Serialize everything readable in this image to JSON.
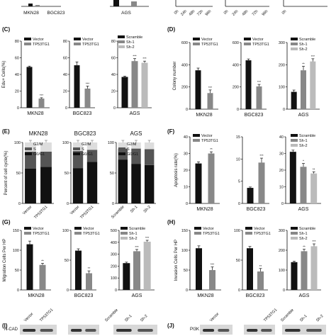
{
  "figure": {
    "top_strip": {
      "labels": [
        "MKN28",
        "BGC823",
        "AGS"
      ],
      "ticks": [
        "0h",
        "24h",
        "48h",
        "72h",
        "96h"
      ]
    },
    "panel_letters": [
      "(C)",
      "(D)",
      "(E)",
      "(F)",
      "(G)",
      "(H)",
      "(I)",
      "(J)"
    ],
    "blots": {
      "I": {
        "protein": "N-CAD",
        "lanes": [
          "Vector",
          "TP53TG1",
          "Scramble",
          "Sh-1",
          "Sh-2"
        ]
      },
      "J": {
        "protein": "PI3K",
        "lanes": [
          "Vector",
          "TP53TG1",
          "Scramble",
          "Sh-1",
          "Sh-2"
        ]
      }
    }
  },
  "colors": {
    "black": "#111111",
    "dark_gray": "#555555",
    "mid_gray": "#888888",
    "light_gray": "#bbbbbb",
    "very_light": "#dddddd"
  },
  "chart_data": [
    {
      "panel": "C",
      "type": "bar",
      "ylabel": "Edu+ Cells(%)",
      "xlabel": "MKN28",
      "ylim": [
        0,
        80
      ],
      "yticks": [
        0,
        20,
        40,
        60,
        80
      ],
      "series": [
        {
          "name": "Vector",
          "values": [
            49
          ]
        },
        {
          "name": "TP53TG1",
          "values": [
            11
          ]
        }
      ],
      "errors": [
        1,
        1
      ],
      "sig": [
        "",
        "***"
      ]
    },
    {
      "panel": "C",
      "type": "bar",
      "xlabel": "BGC823",
      "ylim": [
        0,
        80
      ],
      "yticks": [
        0,
        20,
        40,
        60,
        80
      ],
      "series": [
        {
          "name": "Vector",
          "values": [
            51
          ]
        },
        {
          "name": "TP53TG1",
          "values": [
            23
          ]
        }
      ],
      "errors": [
        4,
        3
      ],
      "sig": [
        "",
        "***"
      ]
    },
    {
      "panel": "C",
      "type": "bar",
      "xlabel": "AGS",
      "ylim": [
        0,
        80
      ],
      "yticks": [
        0,
        20,
        40,
        60,
        80
      ],
      "series": [
        {
          "name": "Scramble",
          "values": [
            37
          ]
        },
        {
          "name": "Sh-1",
          "values": [
            56
          ]
        },
        {
          "name": "Sh-2",
          "values": [
            54
          ]
        }
      ],
      "errors": [
        1,
        3,
        2
      ],
      "sig": [
        "",
        "***",
        "***"
      ]
    },
    {
      "panel": "D",
      "type": "bar",
      "ylabel": "Colony number",
      "xlabel": "MKN28",
      "ylim": [
        0,
        600
      ],
      "yticks": [
        0,
        200,
        400,
        600
      ],
      "series": [
        {
          "name": "Vector",
          "values": [
            350
          ]
        },
        {
          "name": "TP53TG1",
          "values": [
            145
          ]
        }
      ],
      "errors": [
        20,
        28
      ],
      "sig": [
        "",
        "***"
      ]
    },
    {
      "panel": "D",
      "type": "bar",
      "xlabel": "BGC823",
      "ylim": [
        0,
        600
      ],
      "yticks": [
        0,
        200,
        400,
        600
      ],
      "series": [
        {
          "name": "Vector",
          "values": [
            440
          ]
        },
        {
          "name": "TP53TG1",
          "values": [
            205
          ]
        }
      ],
      "errors": [
        12,
        18
      ],
      "sig": [
        "",
        "***"
      ]
    },
    {
      "panel": "D",
      "type": "bar",
      "xlabel": "AGS",
      "ylim": [
        0,
        300
      ],
      "yticks": [
        0,
        100,
        200,
        300
      ],
      "series": [
        {
          "name": "Scramble",
          "values": [
            78
          ]
        },
        {
          "name": "Sh-1",
          "values": [
            175
          ]
        },
        {
          "name": "Sh-2",
          "values": [
            215
          ]
        }
      ],
      "errors": [
        8,
        18,
        12
      ],
      "sig": [
        "",
        "**",
        "***"
      ]
    },
    {
      "panel": "E",
      "type": "bar",
      "title": "MKN28",
      "ylabel": "Percent of cell cycle(%)",
      "ylim": [
        0,
        100
      ],
      "yticks": [
        0,
        50,
        100
      ],
      "categories": [
        "Vector",
        "TP53TG1"
      ],
      "series": [
        {
          "name": "G0/G1",
          "values": [
            57,
            60
          ]
        },
        {
          "name": "S",
          "values": [
            28,
            25
          ]
        },
        {
          "name": "G2/M",
          "values": [
            15,
            15
          ]
        }
      ]
    },
    {
      "panel": "E",
      "type": "bar",
      "title": "BGC823",
      "ylim": [
        0,
        100
      ],
      "yticks": [
        0,
        50,
        100
      ],
      "categories": [
        "Vector",
        "TP53TG1"
      ],
      "series": [
        {
          "name": "G0/G1",
          "values": [
            58,
            68
          ]
        },
        {
          "name": "S",
          "values": [
            28,
            20
          ]
        },
        {
          "name": "G2/M",
          "values": [
            14,
            12
          ]
        }
      ]
    },
    {
      "panel": "E",
      "type": "bar",
      "title": "AGS",
      "ylim": [
        0,
        100
      ],
      "yticks": [
        0,
        50,
        100
      ],
      "categories": [
        "Scramble",
        "Sh-1",
        "Sh-2"
      ],
      "series": [
        {
          "name": "G0/G1",
          "values": [
            72,
            65,
            63
          ]
        },
        {
          "name": "S",
          "values": [
            18,
            25,
            26
          ]
        },
        {
          "name": "G2/M",
          "values": [
            10,
            10,
            11
          ]
        }
      ]
    },
    {
      "panel": "F",
      "type": "bar",
      "ylabel": "Apoptosis rate(%)",
      "xlabel": "MKN28",
      "ylim": [
        0,
        40
      ],
      "yticks": [
        0,
        10,
        20,
        30,
        40
      ],
      "series": [
        {
          "name": "Vector",
          "values": [
            24
          ]
        },
        {
          "name": "TP53TG1",
          "values": [
            30
          ]
        }
      ],
      "errors": [
        1,
        1
      ],
      "sig": [
        "",
        "**"
      ]
    },
    {
      "panel": "F",
      "type": "bar",
      "xlabel": "BGC823",
      "ylim": [
        0,
        15
      ],
      "yticks": [
        0,
        5,
        10,
        15
      ],
      "series": [
        {
          "name": "Vector",
          "values": [
            3.5
          ]
        },
        {
          "name": "TP53TG1",
          "values": [
            9.2
          ]
        }
      ],
      "errors": [
        0.2,
        1
      ],
      "sig": [
        "",
        "***"
      ]
    },
    {
      "panel": "F",
      "type": "bar",
      "xlabel": "AGS",
      "ylim": [
        0,
        40
      ],
      "yticks": [
        0,
        10,
        20,
        30,
        40
      ],
      "series": [
        {
          "name": "Scramble",
          "values": [
            31
          ]
        },
        {
          "name": "Sh-1",
          "values": [
            22
          ]
        },
        {
          "name": "Sh-2",
          "values": [
            18
          ]
        }
      ],
      "errors": [
        1,
        2,
        1
      ],
      "sig": [
        "",
        "*",
        "**"
      ]
    },
    {
      "panel": "G",
      "type": "bar",
      "ylabel": "Migration Cells Per HP",
      "xlabel": "MKN28",
      "ylim": [
        0,
        150
      ],
      "yticks": [
        0,
        50,
        100,
        150
      ],
      "series": [
        {
          "name": "Vector",
          "values": [
            115
          ]
        },
        {
          "name": "TP53TG1",
          "values": [
            63
          ]
        }
      ],
      "errors": [
        8,
        4
      ],
      "sig": [
        "",
        "**"
      ]
    },
    {
      "panel": "G",
      "type": "bar",
      "xlabel": "BGC823",
      "ylim": [
        0,
        100
      ],
      "yticks": [
        0,
        50,
        100
      ],
      "series": [
        {
          "name": "Vector",
          "values": [
            66
          ]
        },
        {
          "name": "TP53TG1",
          "values": [
            28
          ]
        }
      ],
      "errors": [
        3,
        4
      ],
      "sig": [
        "",
        "**"
      ]
    },
    {
      "panel": "G",
      "type": "bar",
      "xlabel": "AGS",
      "ylim": [
        0,
        500
      ],
      "yticks": [
        0,
        100,
        200,
        300,
        400,
        500
      ],
      "series": [
        {
          "name": "Scramble",
          "values": [
            225
          ]
        },
        {
          "name": "Sh-1",
          "values": [
            325
          ]
        },
        {
          "name": "Sh-2",
          "values": [
            405
          ]
        }
      ],
      "errors": [
        8,
        15,
        12
      ],
      "sig": [
        "",
        "***",
        "***"
      ]
    },
    {
      "panel": "H",
      "type": "bar",
      "ylabel": "Invasion Cells Per HP",
      "xlabel": "MKN28",
      "ylim": [
        0,
        150
      ],
      "yticks": [
        0,
        50,
        100,
        150
      ],
      "series": [
        {
          "name": "Vector",
          "values": [
            105
          ]
        },
        {
          "name": "TP53TG1",
          "values": [
            50
          ]
        }
      ],
      "errors": [
        6,
        8
      ],
      "sig": [
        "",
        "***"
      ]
    },
    {
      "panel": "H",
      "type": "bar",
      "xlabel": "BGC823",
      "ylim": [
        0,
        100
      ],
      "yticks": [
        0,
        50,
        100
      ],
      "series": [
        {
          "name": "Vector",
          "values": [
            70
          ]
        },
        {
          "name": "TP53TG1",
          "values": [
            31
          ]
        }
      ],
      "errors": [
        3,
        5
      ],
      "sig": [
        "",
        "**"
      ]
    },
    {
      "panel": "H",
      "type": "bar",
      "xlabel": "AGS",
      "ylim": [
        0,
        300
      ],
      "yticks": [
        0,
        100,
        200,
        300
      ],
      "series": [
        {
          "name": "Scramble",
          "values": [
            140
          ]
        },
        {
          "name": "Sh-1",
          "values": [
            195
          ]
        },
        {
          "name": "Sh-2",
          "values": [
            220
          ]
        }
      ],
      "errors": [
        5,
        10,
        12
      ],
      "sig": [
        "",
        "**",
        "***"
      ]
    }
  ]
}
